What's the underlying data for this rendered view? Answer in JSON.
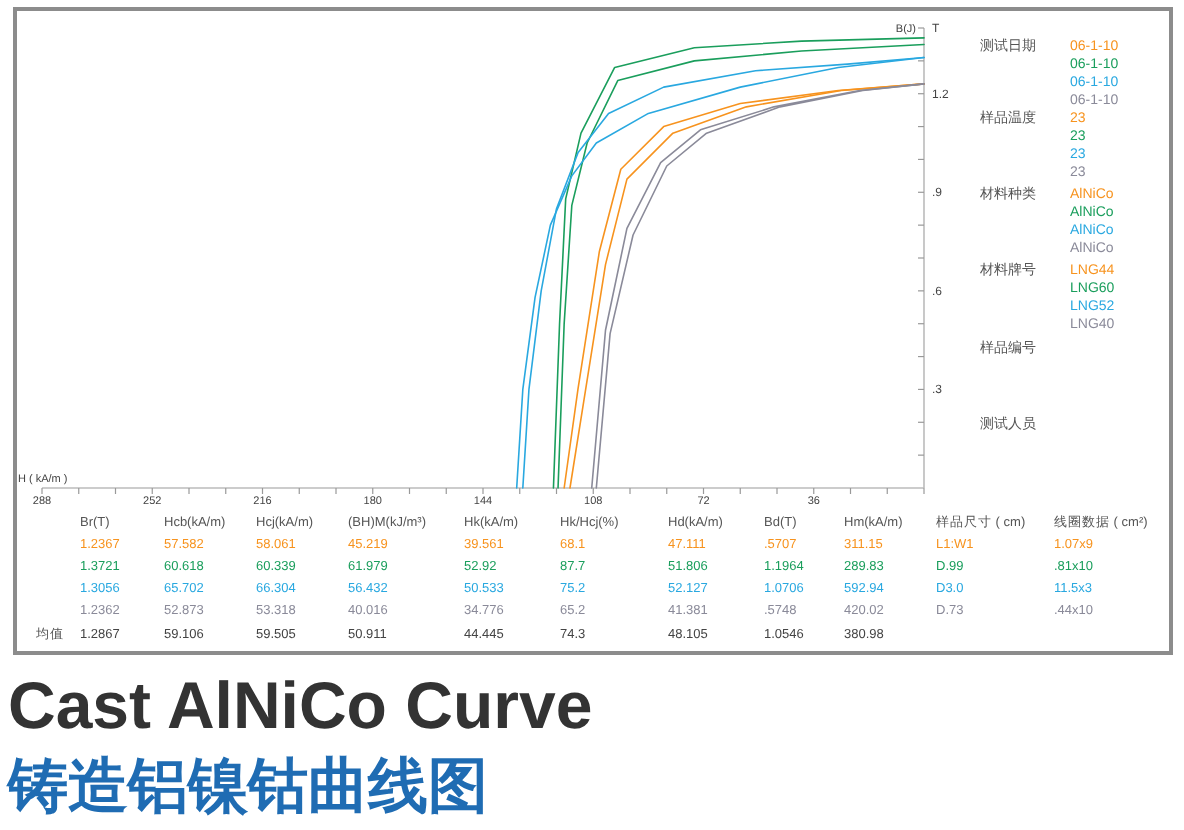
{
  "chart_data": {
    "type": "line",
    "title": "Cast AlNiCo Curve",
    "subtitle": "铸造铝镍钴曲线图",
    "xlabel": "H ( kA/m )",
    "ylabel": "B(J)",
    "xlim": [
      288,
      0
    ],
    "ylim": [
      0,
      1.4
    ],
    "xticks": [
      288,
      {
        "value": 276,
        "label": null
      },
      {
        "value": 264,
        "label": null
      },
      252,
      {
        "value": 240,
        "label": null
      },
      {
        "value": 228,
        "label": null
      },
      216,
      {
        "value": 204,
        "label": null
      },
      {
        "value": 192,
        "label": null
      },
      180,
      {
        "value": 168,
        "label": null
      },
      {
        "value": 156,
        "label": null
      },
      144,
      {
        "value": 132,
        "label": null
      },
      {
        "value": 120,
        "label": null
      },
      108,
      {
        "value": 96,
        "label": null
      },
      {
        "value": 84,
        "label": null
      },
      72,
      {
        "value": 60,
        "label": null
      },
      {
        "value": 48,
        "label": null
      },
      36,
      {
        "value": 24,
        "label": null
      },
      {
        "value": 12,
        "label": null
      },
      {
        "value": 0,
        "label": null
      }
    ],
    "yticks": [
      {
        "value": 0.1,
        "label": null
      },
      {
        "value": 0.2,
        "label": null
      },
      {
        "value": 0.3,
        "label": ".3"
      },
      {
        "value": 0.4,
        "label": null
      },
      {
        "value": 0.5,
        "label": null
      },
      {
        "value": 0.6,
        "label": ".6"
      },
      {
        "value": 0.7,
        "label": null
      },
      {
        "value": 0.8,
        "label": null
      },
      {
        "value": 0.9,
        "label": ".9"
      },
      {
        "value": 1.0,
        "label": null
      },
      {
        "value": 1.1,
        "label": null
      },
      {
        "value": 1.2,
        "label": "1.2"
      },
      {
        "value": 1.3,
        "label": null
      },
      {
        "value": 1.4,
        "label": null
      }
    ],
    "series": [
      {
        "color": "#f7931e",
        "x": [
          115.6,
          111,
          104,
          97,
          82,
          58,
          27,
          0
        ],
        "values": [
          0,
          0.27,
          0.68,
          0.94,
          1.08,
          1.16,
          1.21,
          1.23
        ]
      },
      {
        "color": "#f7931e",
        "x": [
          117.5,
          113,
          106,
          99,
          85,
          60,
          28,
          0
        ],
        "values": [
          0,
          0.3,
          0.72,
          0.97,
          1.1,
          1.17,
          1.21,
          1.23
        ]
      },
      {
        "color": "#1a9e5c",
        "x": [
          121,
          119,
          117,
          112,
          101,
          75,
          40,
          0
        ],
        "values": [
          0,
          0.5,
          0.88,
          1.08,
          1.28,
          1.34,
          1.36,
          1.37
        ]
      },
      {
        "color": "#1a9e5c",
        "x": [
          119.5,
          117.5,
          115,
          110,
          100,
          75,
          40,
          0
        ],
        "values": [
          0,
          0.5,
          0.86,
          1.05,
          1.24,
          1.3,
          1.33,
          1.35
        ]
      },
      {
        "color": "#29a8e0",
        "x": [
          131,
          129,
          125,
          120,
          113,
          103,
          85,
          55,
          25,
          0
        ],
        "values": [
          0,
          0.3,
          0.6,
          0.85,
          1.02,
          1.14,
          1.22,
          1.27,
          1.29,
          1.31
        ]
      },
      {
        "color": "#29a8e0",
        "x": [
          133,
          131,
          127,
          122,
          115,
          107,
          90,
          60,
          28,
          0
        ],
        "values": [
          0,
          0.3,
          0.58,
          0.8,
          0.95,
          1.05,
          1.14,
          1.22,
          1.28,
          1.31
        ]
      },
      {
        "color": "#8a8a99",
        "x": [
          107,
          102.5,
          95,
          84,
          71,
          47,
          20,
          0
        ],
        "values": [
          0,
          0.47,
          0.77,
          0.98,
          1.08,
          1.16,
          1.21,
          1.23
        ]
      },
      {
        "color": "#8a8a99",
        "x": [
          108.5,
          104,
          97,
          86,
          73,
          49,
          21,
          0
        ],
        "values": [
          0,
          0.48,
          0.79,
          0.99,
          1.09,
          1.16,
          1.21,
          1.23
        ]
      }
    ],
    "annotations": [
      "T",
      "测试日期",
      "06-1-10",
      "06-1-10",
      "06-1-10",
      "06-1-10",
      "样品温度",
      "23",
      "23",
      "23",
      "23",
      "材料种类",
      "AlNiCo",
      "AlNiCo",
      "AlNiCo",
      "AlNiCo",
      "材料牌号",
      "LNG44",
      "LNG60",
      "LNG52",
      "LNG40",
      "样品编号",
      "测试人员",
      "Br(T)",
      "Hcb(kA/m)",
      "Hcj(kA/m)",
      "(BH)M(kJ/m³)",
      "Hk(kA/m)",
      "Hk/Hcj(%)",
      "Hd(kA/m)",
      "Bd(T)",
      "Hm(kA/m)",
      "样品尺寸 ( cm)",
      "线圈数据 ( cm²)",
      "1.2367",
      "57.582",
      "58.061",
      "45.219",
      "39.561",
      "68.1",
      "47.111",
      ".5707",
      "311.15",
      "L1:W1",
      "1.07x9",
      "1.3721",
      "60.618",
      "60.339",
      "61.979",
      "52.92",
      "87.7",
      "51.806",
      "1.1964",
      "289.83",
      "D.99",
      ".81x10",
      "1.3056",
      "65.702",
      "66.304",
      "56.432",
      "50.533",
      "75.2",
      "52.127",
      "1.0706",
      "592.94",
      "D3.0",
      "11.5x3",
      "1.2362",
      "52.873",
      "53.318",
      "40.016",
      "34.776",
      "65.2",
      "41.381",
      ".5748",
      "420.02",
      "D.73",
      ".44x10",
      "均值",
      "1.2867",
      "59.106",
      "59.505",
      "50.911",
      "44.445",
      "74.3",
      "48.105",
      "1.0546",
      "380.98"
    ]
  }
}
